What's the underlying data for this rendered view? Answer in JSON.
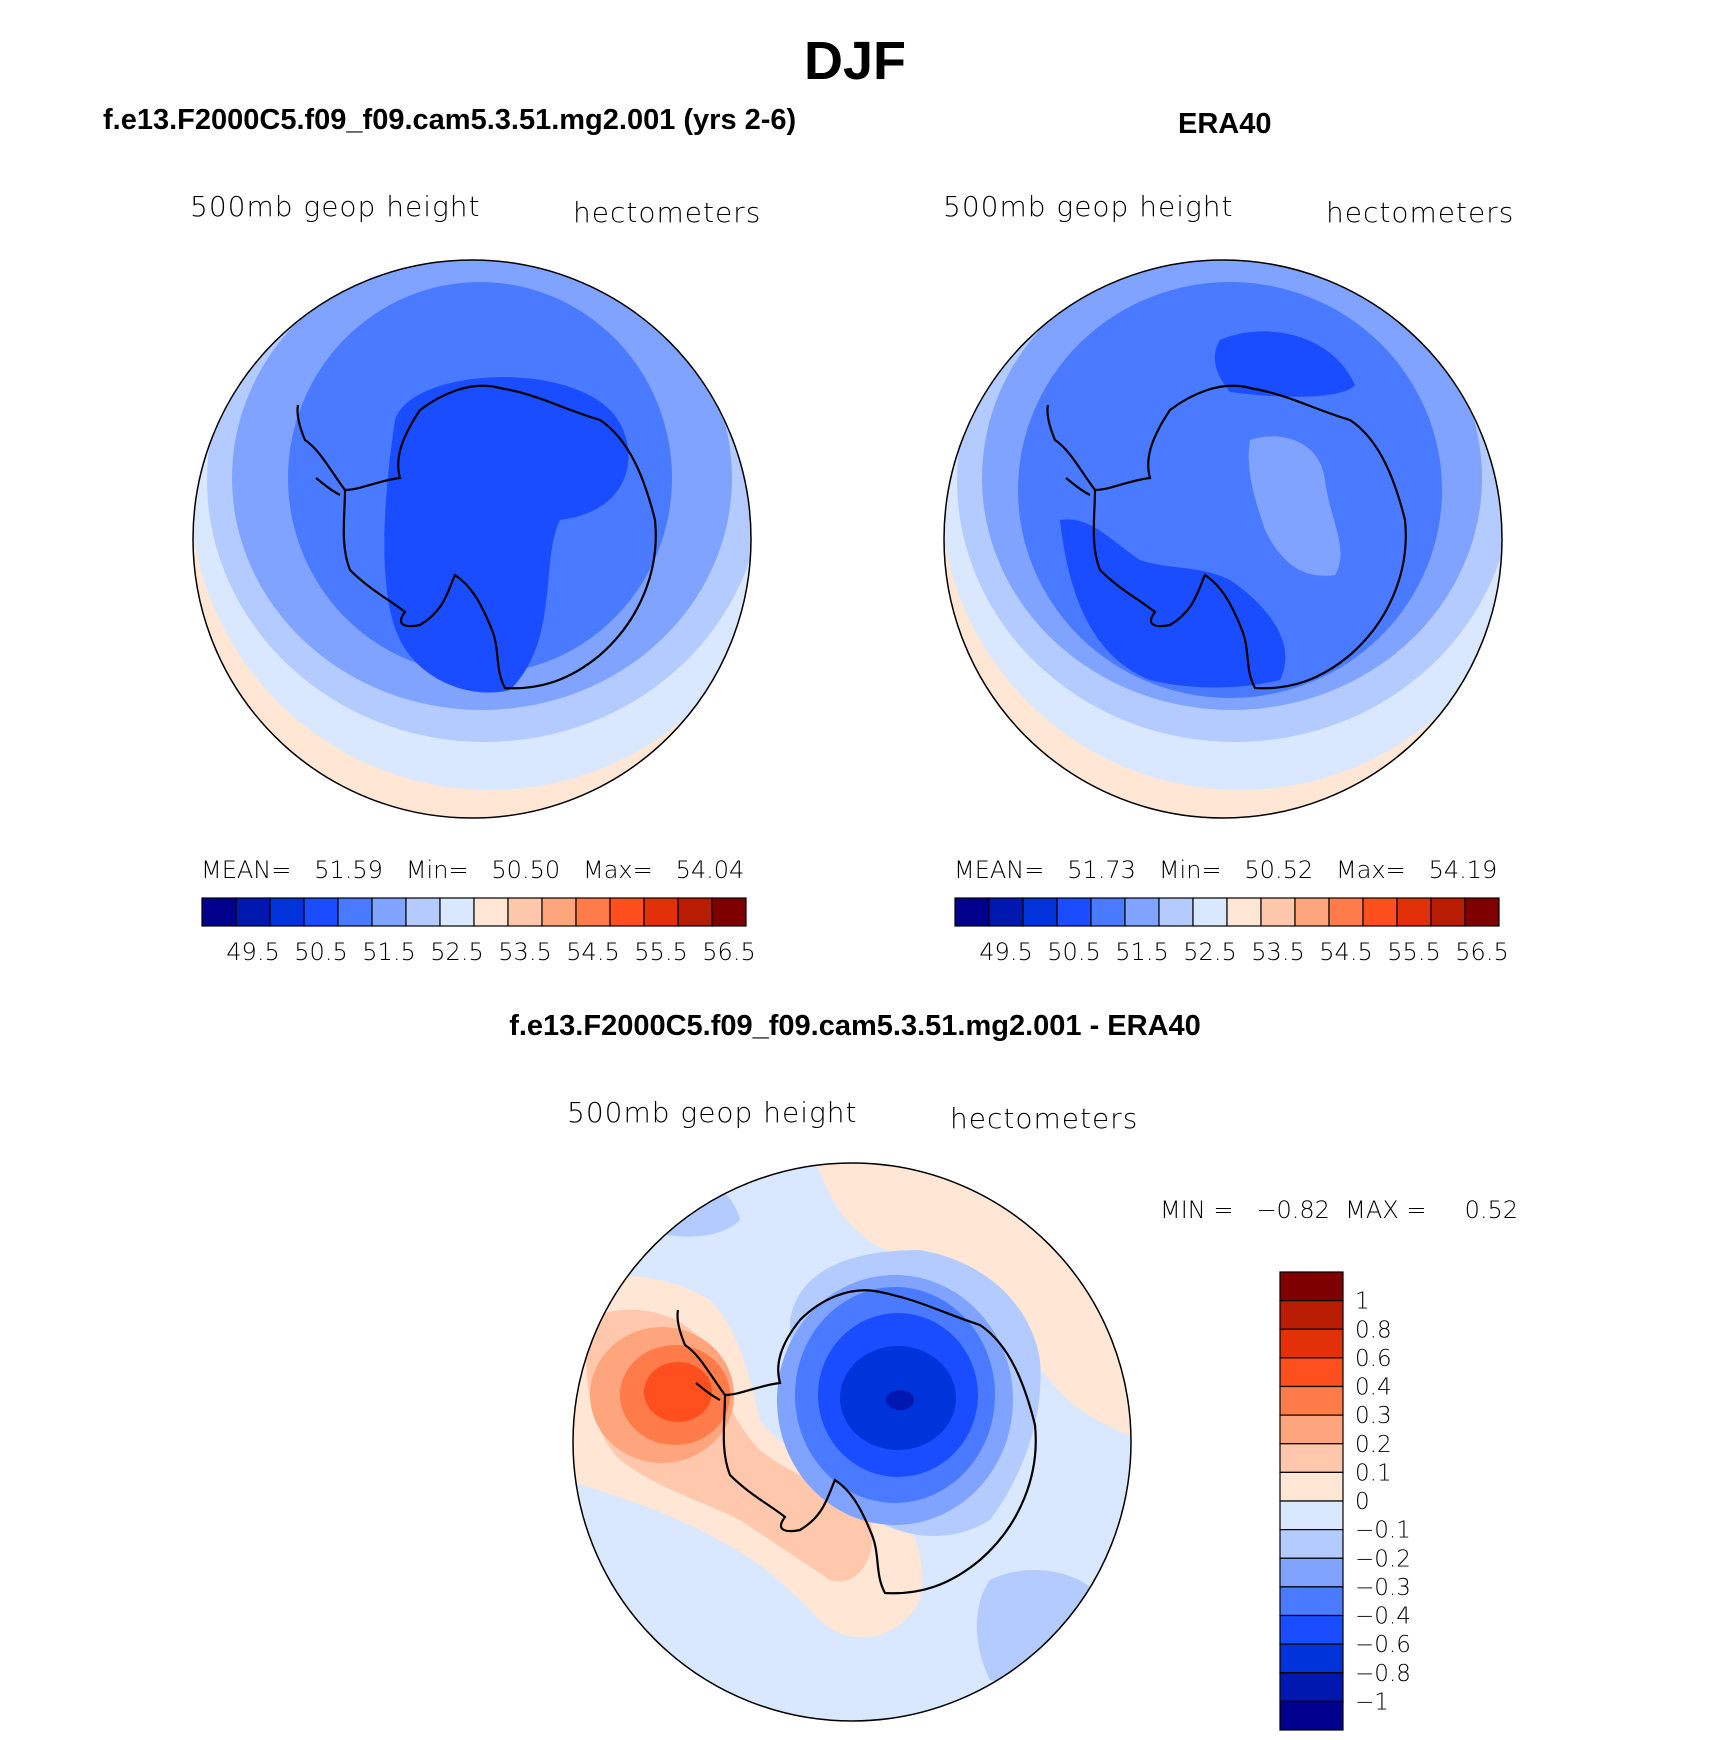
{
  "figure": {
    "title": "DJF",
    "panels": [
      {
        "title": "f.e13.F2000C5.f09_f09.cam5.3.51.mg2.001 (yrs 2-6)",
        "left_label": "500mb  geop  height",
        "right_label": "hectometers",
        "stats": "MEAN=   51.59   Min=   50.50   Max=   54.04",
        "colorbar_ticks": [
          "49.5",
          "50.5",
          "51.5",
          "52.5",
          "53.5",
          "54.5",
          "55.5",
          "56.5"
        ]
      },
      {
        "title": "ERA40",
        "left_label": "500mb  geop  height",
        "right_label": "hectometers",
        "stats": "MEAN=   51.73   Min=   50.52   Max=   54.19",
        "colorbar_ticks": [
          "49.5",
          "50.5",
          "51.5",
          "52.5",
          "53.5",
          "54.5",
          "55.5",
          "56.5"
        ]
      },
      {
        "title": "f.e13.F2000C5.f09_f09.cam5.3.51.mg2.001 - ERA40",
        "left_label": "500mb  geop  height",
        "right_label": "hectometers",
        "stats": "MIN =   −0.82  MAX =     0.52",
        "colorbar_ticks": [
          "1",
          "0.8",
          "0.6",
          "0.4",
          "0.3",
          "0.2",
          "0.1",
          "0",
          "−0.1",
          "−0.2",
          "−0.3",
          "−0.4",
          "−0.6",
          "−0.8",
          "−1"
        ]
      }
    ]
  },
  "colors": {
    "abs_scale": [
      "#00008c",
      "#0018b0",
      "#0033d9",
      "#1a4dff",
      "#4a7aff",
      "#7fa3ff",
      "#b3cbff",
      "#d9e8ff",
      "#ffe6d5",
      "#ffc8ad",
      "#ffa57d",
      "#ff7b4a",
      "#ff4f1f",
      "#e23008",
      "#b81c03",
      "#7f0000"
    ],
    "diff_scale": [
      "#7f0000",
      "#b81c03",
      "#e23008",
      "#ff4f1f",
      "#ff7b4a",
      "#ffa57d",
      "#ffc8ad",
      "#ffe6d5",
      "#d9e8ff",
      "#b3cbff",
      "#7fa3ff",
      "#4a7aff",
      "#1a4dff",
      "#0033d9",
      "#0018b0",
      "#00008c"
    ]
  }
}
